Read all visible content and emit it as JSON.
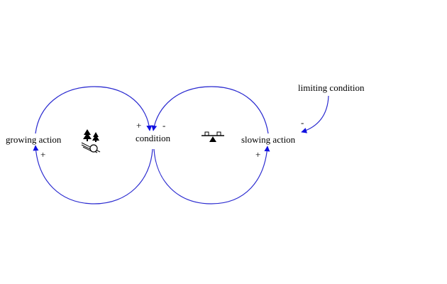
{
  "diagram": {
    "type": "causal-loop",
    "link_color": "#2a2ad0",
    "arrowhead_color": "#1010e0",
    "variables": {
      "growing_action": "growing action",
      "condition": "condition",
      "slowing_action": "slowing action",
      "limiting_condition": "limiting condition"
    },
    "links": [
      {
        "from": "growing action",
        "to": "condition",
        "polarity": "+"
      },
      {
        "from": "condition",
        "to": "growing action",
        "polarity": "+"
      },
      {
        "from": "slowing action",
        "to": "condition",
        "polarity": "-"
      },
      {
        "from": "condition",
        "to": "slowing action",
        "polarity": "+"
      },
      {
        "from": "limiting condition",
        "to": "slowing action",
        "polarity": "-"
      }
    ],
    "loops": [
      {
        "icon": "reinforcing-loop-snowball-icon"
      },
      {
        "icon": "balancing-loop-seesaw-icon"
      }
    ]
  }
}
